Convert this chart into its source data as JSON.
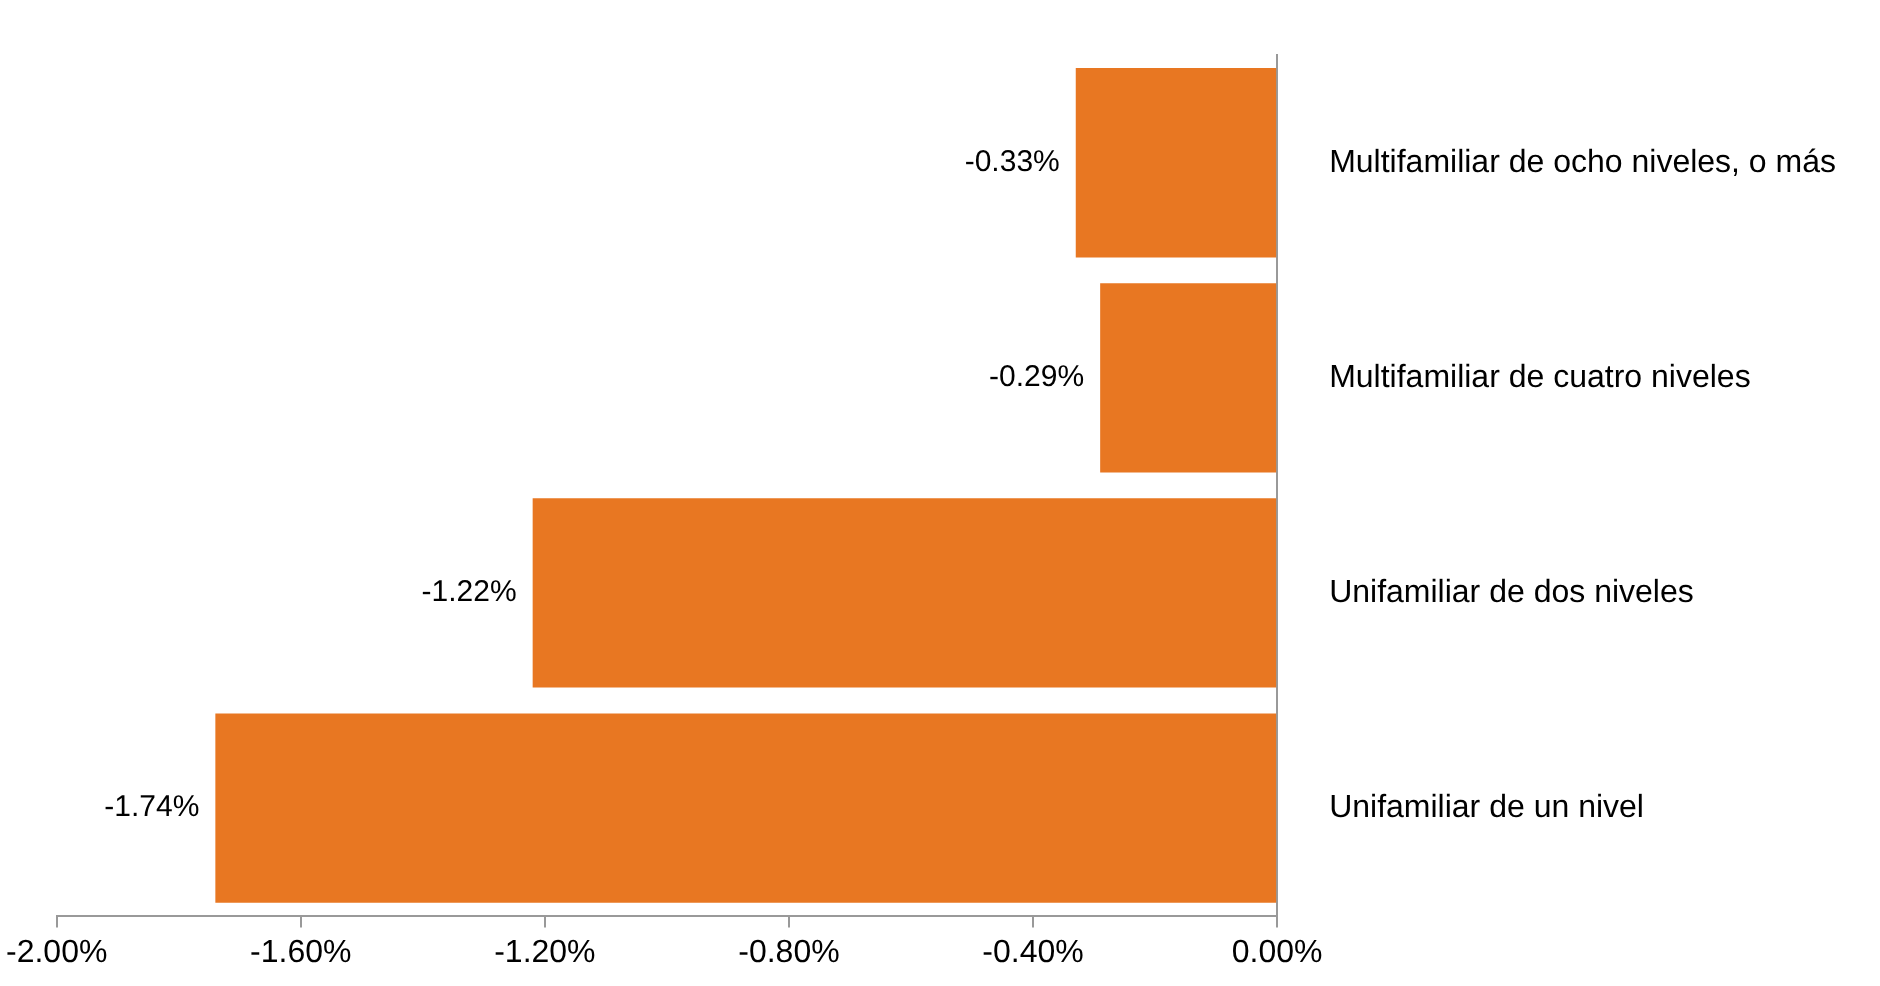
{
  "chart_data": {
    "type": "bar",
    "orientation": "horizontal",
    "categories": [
      "Multifamiliar de ocho niveles, o más",
      "Multifamiliar de cuatro niveles",
      "Unifamiliar de dos niveles",
      "Unifamiliar de un nivel"
    ],
    "values": [
      -0.33,
      -0.29,
      -1.22,
      -1.74
    ],
    "value_labels": [
      "-0.33%",
      "-0.29%",
      "-1.22%",
      "-1.74%"
    ],
    "color": "#e87722",
    "xlim": [
      -2,
      0
    ],
    "xticks": [
      {
        "value": -2,
        "label": "-2.00%"
      },
      {
        "value": -1.6,
        "label": "-1.60%"
      },
      {
        "value": -1.2,
        "label": "-1.20%"
      },
      {
        "value": -0.8,
        "label": "-0.80%"
      },
      {
        "value": -0.4,
        "label": "-0.40%"
      },
      {
        "value": 0,
        "label": "0.00%"
      }
    ]
  }
}
